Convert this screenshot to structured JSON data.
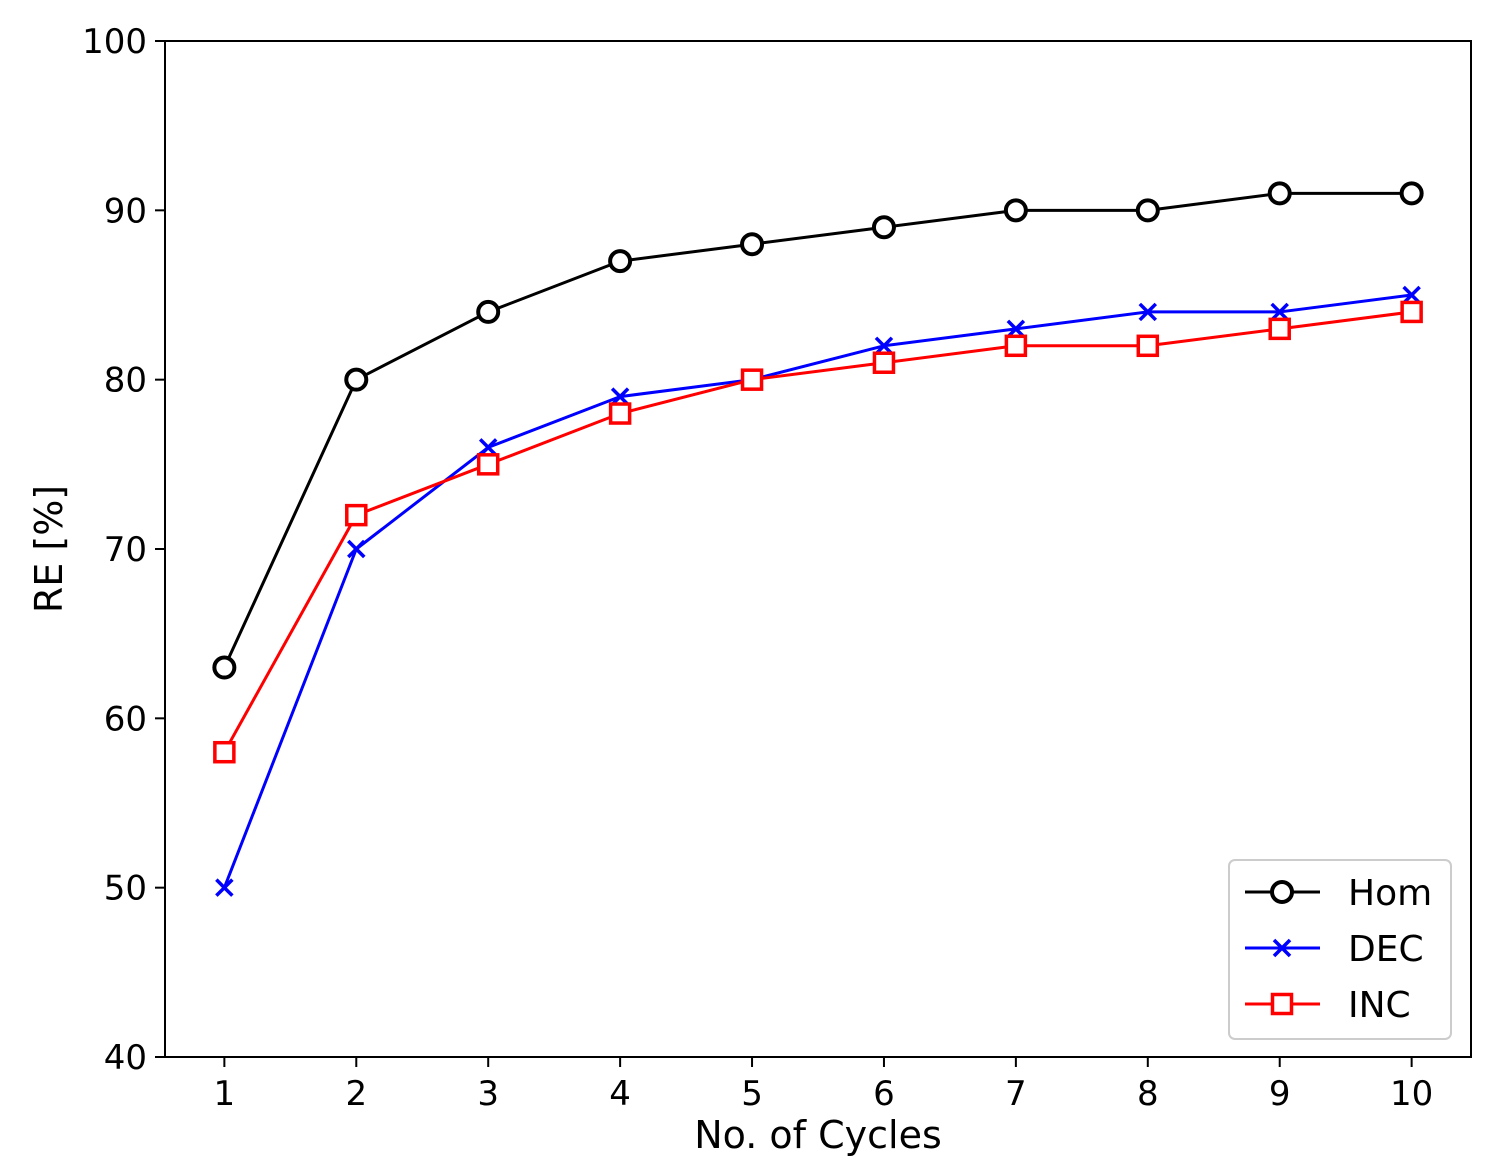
{
  "chart_data": {
    "type": "line",
    "title": "",
    "xlabel": "No. of Cycles",
    "ylabel": "RE [%]",
    "x": [
      1,
      2,
      3,
      4,
      5,
      6,
      7,
      8,
      9,
      10
    ],
    "xlim": [
      0.55,
      10.45
    ],
    "ylim": [
      40,
      100
    ],
    "xticks": [
      1,
      2,
      3,
      4,
      5,
      6,
      7,
      8,
      9,
      10
    ],
    "yticks": [
      40,
      50,
      60,
      70,
      80,
      90,
      100
    ],
    "grid": false,
    "legend_position": "lower-right",
    "series": [
      {
        "name": "Hom",
        "color": "#000000",
        "marker": "circle",
        "values": [
          63,
          80,
          84,
          87,
          88,
          89,
          90,
          90,
          91,
          91
        ]
      },
      {
        "name": "DEC",
        "color": "#0000ff",
        "marker": "x",
        "values": [
          50,
          70,
          76,
          79,
          80,
          82,
          83,
          84,
          84,
          85
        ]
      },
      {
        "name": "INC",
        "color": "#ff0000",
        "marker": "square",
        "values": [
          58,
          72,
          75,
          78,
          80,
          81,
          82,
          82,
          83,
          84
        ]
      }
    ]
  }
}
